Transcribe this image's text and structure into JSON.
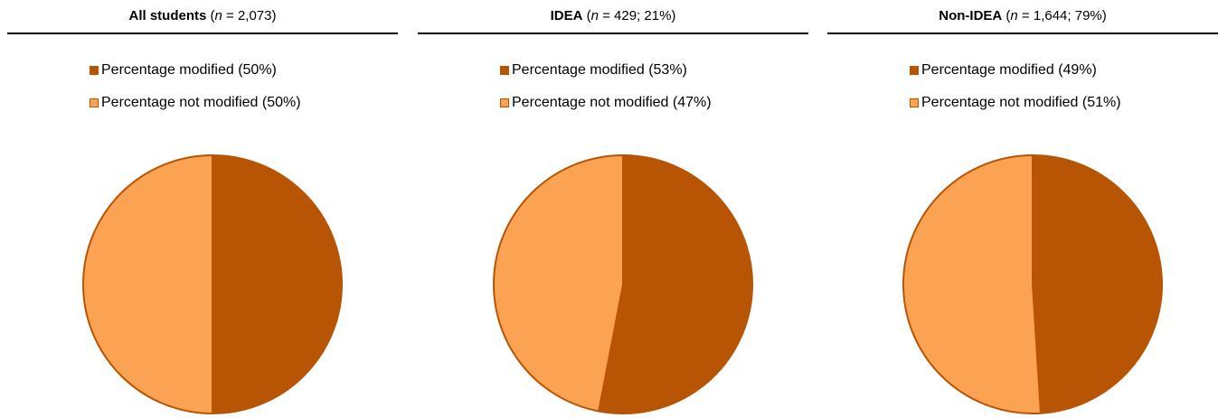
{
  "colors": {
    "modified": "#B85504",
    "not_modified": "#FBA353",
    "stroke": "#B85504"
  },
  "chart_data": [
    {
      "type": "pie",
      "title": {
        "bold": "All students",
        "n_label": "n",
        "rest": " = 2,073)"
      },
      "slices": [
        {
          "label": "Percentage modified (50%)",
          "value": 50,
          "color": "#B85504"
        },
        {
          "label": "Percentage not modified (50%)",
          "value": 50,
          "color": "#FBA353"
        }
      ]
    },
    {
      "type": "pie",
      "title": {
        "bold": "IDEA",
        "n_label": "n",
        "rest": " = 429; 21%)"
      },
      "slices": [
        {
          "label": "Percentage modified (53%)",
          "value": 53,
          "color": "#B85504"
        },
        {
          "label": "Percentage not modified (47%)",
          "value": 47,
          "color": "#FBA353"
        }
      ]
    },
    {
      "type": "pie",
      "title": {
        "bold": "Non-IDEA",
        "n_label": "n",
        "rest": " = 1,644; 79%)"
      },
      "slices": [
        {
          "label": "Percentage modified (49%)",
          "value": 49,
          "color": "#B85504"
        },
        {
          "label": "Percentage not modified (51%)",
          "value": 51,
          "color": "#FBA353"
        }
      ]
    }
  ]
}
